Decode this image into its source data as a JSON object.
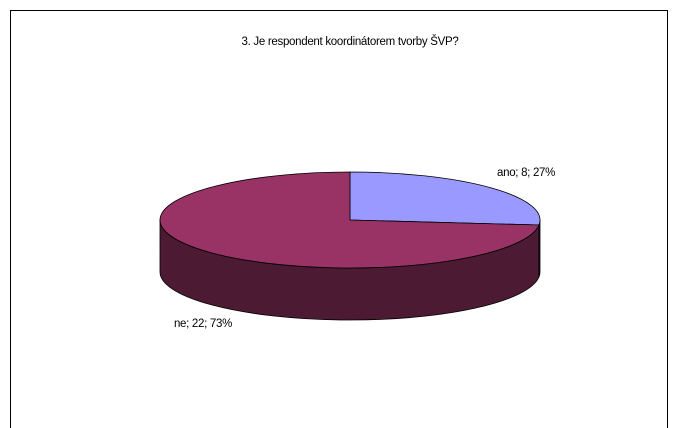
{
  "chart_data": {
    "type": "pie",
    "title": "3. Je respondent koordinátorem tvorby ŠVP?",
    "categories": [
      "ano",
      "ne"
    ],
    "values": [
      8,
      22
    ],
    "value_labels": [
      "ano; 8; 27%",
      "ne; 22; 73%"
    ],
    "colors": [
      "#9999ff",
      "#993366"
    ],
    "side_colors": [
      "#4d4d80",
      "#4c1a33"
    ]
  }
}
